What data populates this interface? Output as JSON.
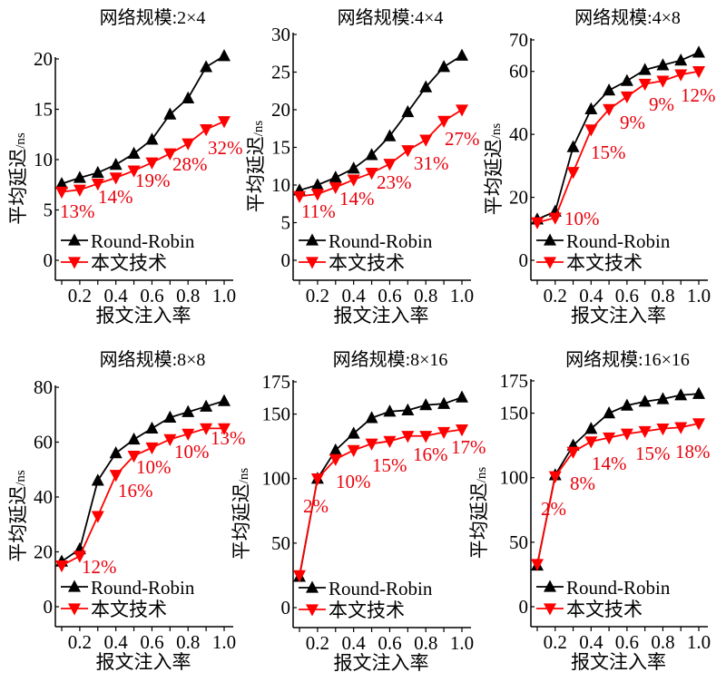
{
  "colors": {
    "round_robin": "#000000",
    "ours": "#ff0000",
    "annotation": "#e8000b"
  },
  "chart_data": [
    {
      "type": "line",
      "title": "网络规模:2×4",
      "xlabel": "报文注入率",
      "ylabel": "平均延迟",
      "ylabel_unit": "/ns",
      "x": [
        0.1,
        0.2,
        0.3,
        0.4,
        0.5,
        0.6,
        0.7,
        0.8,
        0.9,
        1.0
      ],
      "xticks": [
        "0.2",
        "0.4",
        "0.6",
        "0.8",
        "1.0"
      ],
      "yticks": [
        0,
        5,
        10,
        15,
        20
      ],
      "ylim": [
        0,
        20
      ],
      "grid": false,
      "legend_position": "bottom-left",
      "series": [
        {
          "name": "Round-Robin",
          "marker": "triangle-up",
          "values": [
            7.6,
            8.2,
            8.7,
            9.5,
            10.6,
            12.0,
            14.5,
            16.1,
            19.2,
            20.3
          ]
        },
        {
          "name": "本文技术",
          "marker": "triangle-down",
          "values": [
            6.8,
            7.0,
            7.6,
            8.2,
            8.9,
            9.7,
            10.6,
            11.6,
            13.0,
            13.8
          ]
        }
      ],
      "annotations": [
        {
          "text": "13%",
          "x": 0.1
        },
        {
          "text": "14%",
          "x": 0.3
        },
        {
          "text": "19%",
          "x": 0.5
        },
        {
          "text": "28%",
          "x": 0.7
        },
        {
          "text": "32%",
          "x": 0.9
        }
      ]
    },
    {
      "type": "line",
      "title": "网络规模:4×4",
      "xlabel": "报文注入率",
      "ylabel": "平均延迟",
      "ylabel_unit": "/ns",
      "x": [
        0.1,
        0.2,
        0.3,
        0.4,
        0.5,
        0.6,
        0.7,
        0.8,
        0.9,
        1.0
      ],
      "xticks": [
        "0.2",
        "0.4",
        "0.6",
        "0.8",
        "1.0"
      ],
      "yticks": [
        0,
        5,
        10,
        15,
        20,
        25,
        30
      ],
      "ylim": [
        0,
        30
      ],
      "grid": false,
      "legend_position": "bottom-left",
      "series": [
        {
          "name": "Round-Robin",
          "marker": "triangle-up",
          "values": [
            9.3,
            10.0,
            11.0,
            12.2,
            14.0,
            16.5,
            19.7,
            23.0,
            25.7,
            27.2
          ]
        },
        {
          "name": "本文技术",
          "marker": "triangle-down",
          "values": [
            8.5,
            8.8,
            9.7,
            10.7,
            11.6,
            12.8,
            14.6,
            16.0,
            18.5,
            20.0
          ]
        }
      ],
      "annotations": [
        {
          "text": "11%",
          "x": 0.1
        },
        {
          "text": "14%",
          "x": 0.3
        },
        {
          "text": "23%",
          "x": 0.5
        },
        {
          "text": "31%",
          "x": 0.7
        },
        {
          "text": "27%",
          "x": 0.9
        }
      ]
    },
    {
      "type": "line",
      "title": "网络规模:4×8",
      "xlabel": "报文注入率",
      "ylabel": "平均延迟",
      "ylabel_unit": "/ns",
      "x": [
        0.1,
        0.2,
        0.3,
        0.4,
        0.5,
        0.6,
        0.7,
        0.8,
        0.9,
        1.0
      ],
      "xticks": [
        "0.2",
        "0.4",
        "0.6",
        "0.8",
        "1.0"
      ],
      "yticks": [
        0,
        20,
        40,
        60,
        70
      ],
      "ylim": [
        0,
        70
      ],
      "grid": false,
      "legend_position": "bottom-left",
      "series": [
        {
          "name": "Round-Robin",
          "marker": "triangle-up",
          "values": [
            13,
            15.5,
            36,
            48,
            54,
            57,
            60.5,
            62,
            63.5,
            66
          ]
        },
        {
          "name": "本文技术",
          "marker": "triangle-down",
          "values": [
            12,
            13.5,
            28,
            41.5,
            48,
            52,
            56,
            57,
            59,
            60
          ]
        }
      ],
      "annotations": [
        {
          "text": "10%",
          "x": 0.2
        },
        {
          "text": "15%",
          "x": 0.4
        },
        {
          "text": "9%",
          "x": 0.5
        },
        {
          "text": "9%",
          "x": 0.7
        },
        {
          "text": "12%",
          "x": 0.9
        }
      ]
    },
    {
      "type": "line",
      "title": "网络规模:8×8",
      "xlabel": "报文注入率",
      "ylabel": "平均延迟",
      "ylabel_unit": "/ns",
      "x": [
        0.1,
        0.2,
        0.3,
        0.4,
        0.5,
        0.6,
        0.7,
        0.8,
        0.9,
        1.0
      ],
      "xticks": [
        "0.2",
        "0.4",
        "0.6",
        "0.8",
        "1.0"
      ],
      "yticks": [
        0,
        20,
        40,
        60,
        80
      ],
      "ylim": [
        0,
        80
      ],
      "grid": false,
      "legend_position": "bottom-left",
      "series": [
        {
          "name": "Round-Robin",
          "marker": "triangle-up",
          "values": [
            16.5,
            21,
            46,
            56,
            61,
            65,
            69,
            71,
            73,
            75
          ]
        },
        {
          "name": "本文技术",
          "marker": "triangle-down",
          "values": [
            15,
            18.5,
            33,
            48,
            55,
            58,
            61,
            63,
            65,
            65
          ]
        }
      ],
      "annotations": [
        {
          "text": "12%",
          "x": 0.2
        },
        {
          "text": "16%",
          "x": 0.4
        },
        {
          "text": "10%",
          "x": 0.5
        },
        {
          "text": "10%",
          "x": 0.7
        },
        {
          "text": "13%",
          "x": 0.9
        }
      ]
    },
    {
      "type": "line",
      "title": "网络规模:8×16",
      "xlabel": "报文注入率",
      "ylabel": "平均延迟",
      "ylabel_unit": "/ns",
      "x": [
        0.1,
        0.2,
        0.3,
        0.4,
        0.5,
        0.6,
        0.7,
        0.8,
        0.9,
        1.0
      ],
      "xticks": [
        "0.2",
        "0.4",
        "0.6",
        "0.8",
        "1.0"
      ],
      "yticks": [
        0,
        50,
        100,
        150,
        175
      ],
      "ylim": [
        0,
        175
      ],
      "grid": false,
      "legend_position": "bottom-left",
      "series": [
        {
          "name": "Round-Robin",
          "marker": "triangle-up",
          "values": [
            24,
            100,
            122,
            135,
            147,
            152,
            153,
            157,
            158,
            163
          ]
        },
        {
          "name": "本文技术",
          "marker": "triangle-down",
          "values": [
            25,
            100,
            115,
            122,
            127,
            129,
            133,
            133,
            136,
            138
          ]
        }
      ],
      "annotations": [
        {
          "text": "2%",
          "x": 0.2
        },
        {
          "text": "10%",
          "x": 0.3
        },
        {
          "text": "15%",
          "x": 0.5
        },
        {
          "text": "16%",
          "x": 0.7
        },
        {
          "text": "17%",
          "x": 0.9
        }
      ]
    },
    {
      "type": "line",
      "title": "网络规模:16×16",
      "xlabel": "报文注入率",
      "ylabel": "平均延迟",
      "ylabel_unit": "/ns",
      "x": [
        0.1,
        0.2,
        0.3,
        0.4,
        0.5,
        0.6,
        0.7,
        0.8,
        0.9,
        1.0
      ],
      "xticks": [
        "0.2",
        "0.4",
        "0.6",
        "0.8",
        "1.0"
      ],
      "yticks": [
        0,
        50,
        100,
        150,
        175
      ],
      "ylim": [
        0,
        175
      ],
      "grid": false,
      "legend_position": "bottom-left",
      "series": [
        {
          "name": "Round-Robin",
          "marker": "triangle-up",
          "values": [
            32,
            102,
            125,
            138,
            150,
            156,
            159,
            161,
            164,
            165
          ]
        },
        {
          "name": "本文技术",
          "marker": "triangle-down",
          "values": [
            33,
            101,
            120,
            128,
            131,
            134,
            136,
            138,
            139,
            142
          ]
        }
      ],
      "annotations": [
        {
          "text": "2%",
          "x": 0.2
        },
        {
          "text": "8%",
          "x": 0.3
        },
        {
          "text": "14%",
          "x": 0.5
        },
        {
          "text": "15%",
          "x": 0.7
        },
        {
          "text": "18%",
          "x": 0.9
        }
      ]
    }
  ]
}
